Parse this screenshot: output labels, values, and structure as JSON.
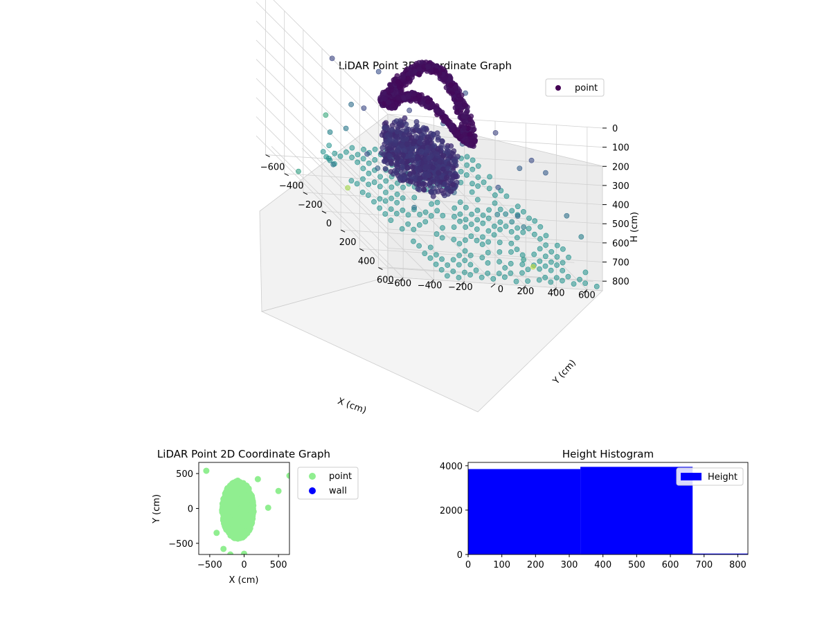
{
  "figure": {
    "background": "#ffffff"
  },
  "chart_data": [
    {
      "type": "scatter3d",
      "title": "LiDAR Point 3D Coordinate Graph",
      "xlabel": "X (cm)",
      "ylabel": "Y (cm)",
      "zlabel": "H (cm)",
      "xlim": [
        -700,
        700
      ],
      "ylim": [
        -700,
        700
      ],
      "zlim": [
        850,
        0
      ],
      "xticks": [
        -600,
        -400,
        -200,
        0,
        200,
        400,
        600
      ],
      "xtick_labels": [
        "−600",
        "−400",
        "−200",
        "0",
        "200",
        "400",
        "600"
      ],
      "yticks": [
        -600,
        -400,
        -200,
        0,
        200,
        400,
        600
      ],
      "ytick_labels": [
        "−600",
        "−400",
        "−200",
        "0",
        "200",
        "400",
        "600"
      ],
      "zticks": [
        0,
        100,
        200,
        300,
        400,
        500,
        600,
        700,
        800
      ],
      "ztick_labels": [
        "0",
        "100",
        "200",
        "300",
        "400",
        "500",
        "600",
        "700",
        "800"
      ],
      "z_inverted": true,
      "colormap": "viridis",
      "grid": true,
      "legend": {
        "position": "top-right",
        "entries": [
          {
            "label": "point",
            "color": "#440154"
          }
        ]
      },
      "series": [
        {
          "name": "point",
          "cluster": "upper-ring",
          "x_range": [
            -400,
            200
          ],
          "y_range": [
            -200,
            300
          ],
          "h_range": [
            180,
            420
          ]
        },
        {
          "name": "point",
          "cluster": "lower-disc",
          "x_range": [
            -350,
            150
          ],
          "y_range": [
            -200,
            200
          ],
          "h_range": [
            480,
            680
          ]
        },
        {
          "name": "point",
          "cluster": "floor-grid",
          "x_range": [
            -700,
            700
          ],
          "y_range": [
            -300,
            700
          ],
          "h_range": [
            820,
            840
          ]
        }
      ]
    },
    {
      "type": "scatter",
      "title": "LiDAR Point 2D Coordinate Graph",
      "xlabel": "X (cm)",
      "ylabel": "Y (cm)",
      "xlim": [
        -660,
        660
      ],
      "ylim": [
        -660,
        660
      ],
      "xticks": [
        -500,
        0,
        500
      ],
      "xtick_labels": [
        "−500",
        "0",
        "500"
      ],
      "yticks": [
        -500,
        0,
        500
      ],
      "ytick_labels": [
        "−500",
        "0",
        "500"
      ],
      "legend": {
        "position": "outside-right",
        "entries": [
          {
            "label": "point",
            "color": "#90ee90"
          },
          {
            "label": "wall",
            "color": "#0000ff"
          }
        ]
      },
      "series": [
        {
          "name": "point",
          "color": "#90ee90",
          "body": {
            "cx": -90,
            "cy": -20,
            "rx": 230,
            "ry": 420
          },
          "outliers": [
            [
              -550,
              540
            ],
            [
              660,
              470
            ],
            [
              500,
              250
            ],
            [
              200,
              420
            ],
            [
              -400,
              -350
            ],
            [
              -300,
              -580
            ],
            [
              -200,
              -660
            ],
            [
              0,
              -650
            ],
            [
              350,
              10
            ]
          ]
        },
        {
          "name": "wall",
          "color": "#0000ff",
          "x": [],
          "y": []
        }
      ]
    },
    {
      "type": "histogram",
      "title": "Height Histogram",
      "xlim": [
        0,
        830
      ],
      "ylim": [
        0,
        4150
      ],
      "xticks": [
        0,
        100,
        200,
        300,
        400,
        500,
        600,
        700,
        800
      ],
      "yticks": [
        0,
        2000,
        4000
      ],
      "legend": {
        "position": "top-right",
        "entries": [
          {
            "label": "Height",
            "color": "#0000ff"
          }
        ]
      },
      "bar_color": "#0000ff",
      "bins": [
        {
          "x0": 0,
          "x1": 333,
          "count": 3850
        },
        {
          "x0": 333,
          "x1": 666,
          "count": 3950
        },
        {
          "x0": 666,
          "x1": 830,
          "count": 40
        }
      ]
    }
  ]
}
